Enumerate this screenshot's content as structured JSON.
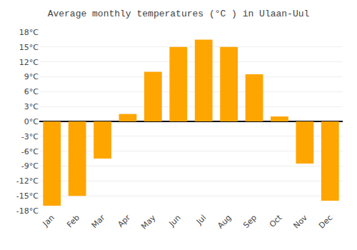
{
  "chart_data": {
    "type": "bar",
    "title": "Average monthly temperatures (°C ) in Ulaan-Uul",
    "categories": [
      "Jan",
      "Feb",
      "Mar",
      "Apr",
      "May",
      "Jun",
      "Jul",
      "Aug",
      "Sep",
      "Oct",
      "Nov",
      "Dec"
    ],
    "values": [
      -17,
      -15,
      -7.5,
      1.5,
      10,
      15,
      16.5,
      15,
      9.5,
      1,
      -8.5,
      -16
    ],
    "color": "#FFA500",
    "ylim": [
      -18,
      18
    ],
    "yticks": [
      {
        "value": -18,
        "label": "-18°C"
      },
      {
        "value": -15,
        "label": "-15°C"
      },
      {
        "value": -12,
        "label": "-12°C"
      },
      {
        "value": -9,
        "label": "-9°C"
      },
      {
        "value": -6,
        "label": "-6°C"
      },
      {
        "value": -3,
        "label": "-3°C"
      },
      {
        "value": 0,
        "label": "0°C"
      },
      {
        "value": 3,
        "label": "3°C"
      },
      {
        "value": 6,
        "label": "6°C"
      },
      {
        "value": 9,
        "label": "9°C"
      },
      {
        "value": 12,
        "label": "12°C"
      },
      {
        "value": 15,
        "label": "15°C"
      },
      {
        "value": 18,
        "label": "18°C"
      }
    ],
    "grid": true
  }
}
